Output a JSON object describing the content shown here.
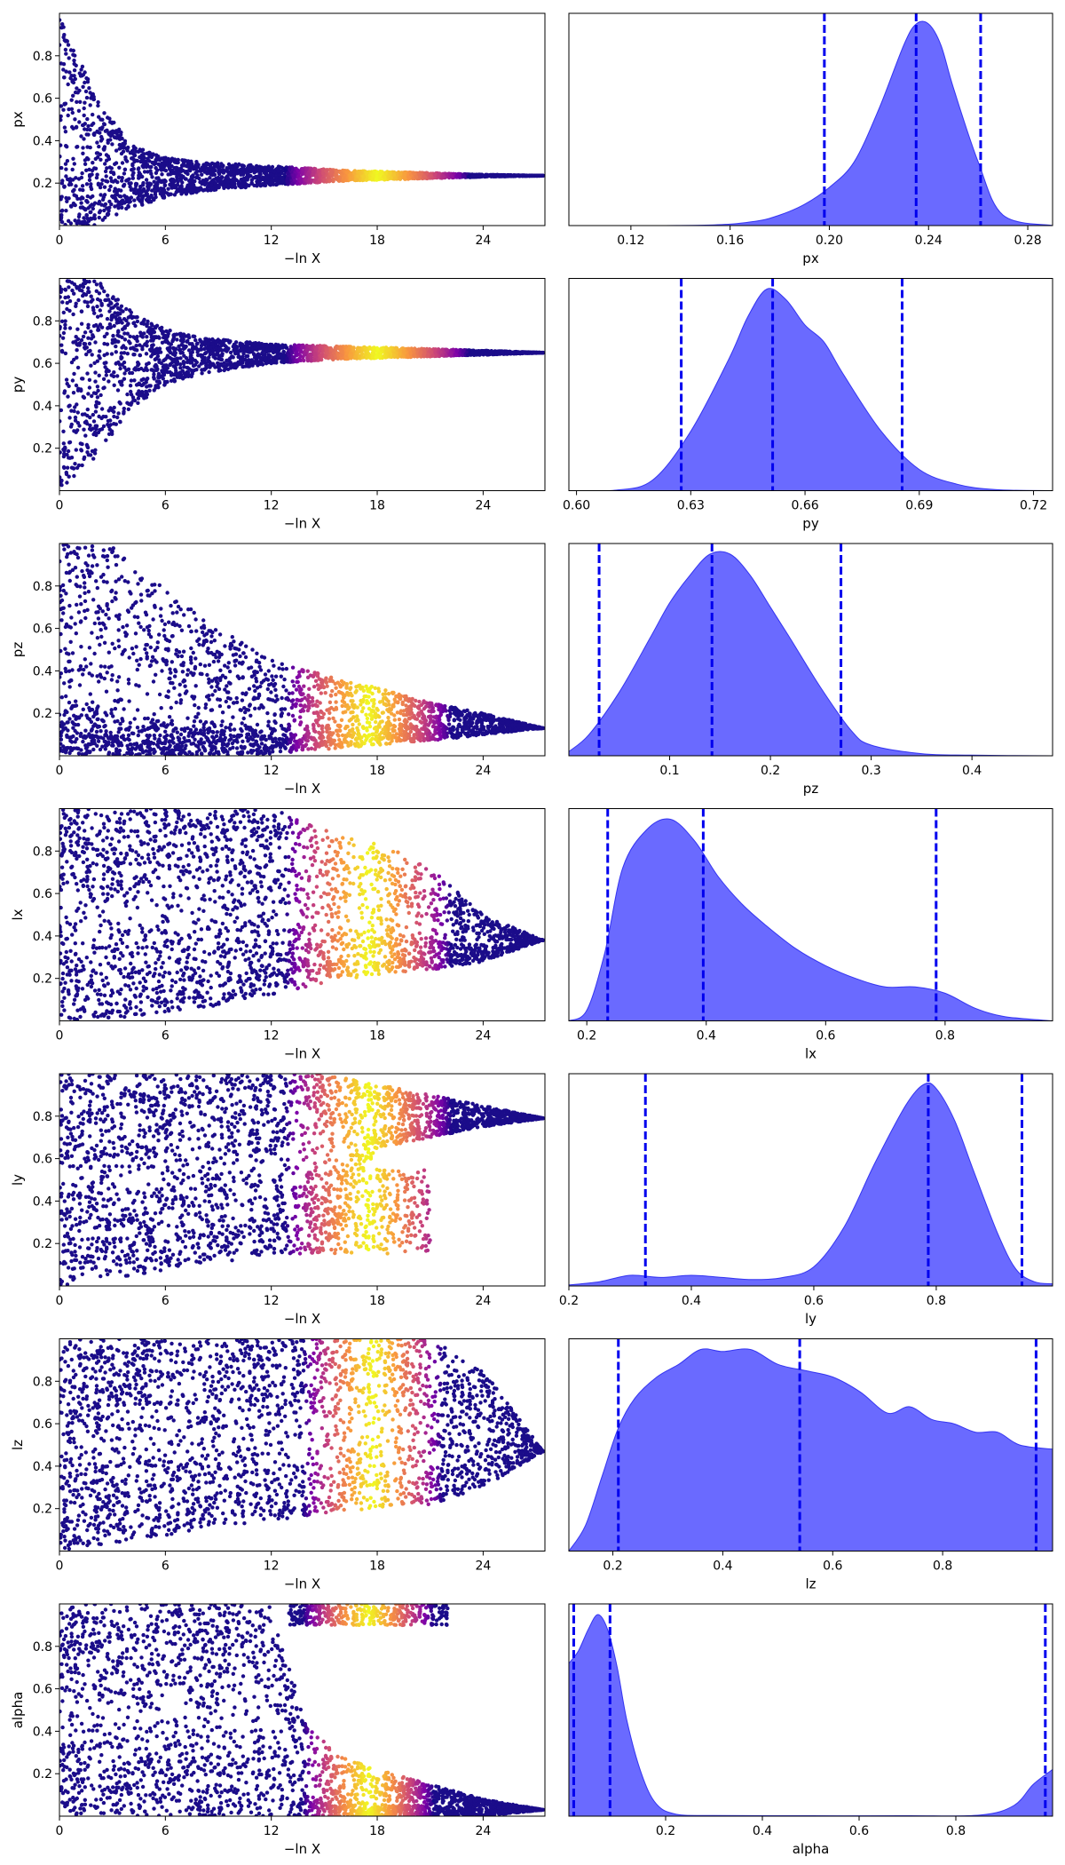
{
  "chart_data": [
    {
      "type": "scatter",
      "param": "px",
      "xlabel": "−ln X",
      "ylabel": "px",
      "xlim": [
        0,
        27.5
      ],
      "ylim": [
        0,
        1
      ],
      "grid": false,
      "xticks": [
        0,
        6,
        12,
        18,
        24
      ],
      "yticks": [
        0.2,
        0.4,
        0.6,
        0.8
      ],
      "envelope": {
        "x": [
          0,
          2,
          4,
          6,
          8,
          12,
          16,
          20,
          24,
          27.4
        ],
        "center": [
          0.35,
          0.28,
          0.25,
          0.24,
          0.235,
          0.235,
          0.235,
          0.235,
          0.235,
          0.235
        ],
        "lower": [
          0,
          0,
          0.08,
          0.13,
          0.16,
          0.19,
          0.21,
          0.22,
          0.23,
          0.235
        ],
        "upper": [
          1,
          0.62,
          0.38,
          0.32,
          0.3,
          0.28,
          0.26,
          0.25,
          0.24,
          0.235
        ]
      },
      "bright_x_range": [
        14,
        22
      ]
    },
    {
      "type": "area",
      "param": "px",
      "xlabel": "px",
      "xlim": [
        0.095,
        0.29
      ],
      "xticks": [
        0.12,
        0.16,
        0.2,
        0.24,
        0.28
      ],
      "x": [
        0.095,
        0.15,
        0.17,
        0.18,
        0.19,
        0.2,
        0.21,
        0.22,
        0.23,
        0.235,
        0.24,
        0.245,
        0.25,
        0.26,
        0.27,
        0.29
      ],
      "y": [
        0,
        0.002,
        0.02,
        0.05,
        0.1,
        0.18,
        0.3,
        0.55,
        0.85,
        0.95,
        0.95,
        0.85,
        0.65,
        0.3,
        0.05,
        0
      ],
      "vlines": [
        0.198,
        0.235,
        0.261
      ]
    },
    {
      "type": "scatter",
      "param": "py",
      "xlabel": "−ln X",
      "ylabel": "py",
      "xlim": [
        0,
        27.5
      ],
      "ylim": [
        0,
        1
      ],
      "grid": false,
      "xticks": [
        0,
        6,
        12,
        18,
        24
      ],
      "yticks": [
        0.2,
        0.4,
        0.6,
        0.8
      ],
      "envelope": {
        "x": [
          0,
          2,
          4,
          6,
          8,
          12,
          16,
          20,
          24,
          27.4
        ],
        "center": [
          0.6,
          0.62,
          0.63,
          0.64,
          0.645,
          0.65,
          0.65,
          0.65,
          0.65,
          0.65
        ],
        "lower": [
          0,
          0.15,
          0.38,
          0.5,
          0.55,
          0.6,
          0.62,
          0.63,
          0.64,
          0.65
        ],
        "upper": [
          1,
          1,
          0.85,
          0.76,
          0.72,
          0.69,
          0.68,
          0.67,
          0.66,
          0.65
        ]
      },
      "bright_x_range": [
        14,
        22
      ]
    },
    {
      "type": "area",
      "param": "py",
      "xlabel": "py",
      "xlim": [
        0.598,
        0.725
      ],
      "xticks": [
        0.6,
        0.63,
        0.66,
        0.69,
        0.72
      ],
      "x": [
        0.598,
        0.61,
        0.62,
        0.63,
        0.64,
        0.645,
        0.65,
        0.655,
        0.66,
        0.665,
        0.67,
        0.68,
        0.69,
        0.7,
        0.71,
        0.725
      ],
      "y": [
        0,
        0.002,
        0.05,
        0.28,
        0.62,
        0.82,
        0.95,
        0.9,
        0.78,
        0.7,
        0.55,
        0.28,
        0.1,
        0.03,
        0.005,
        0
      ],
      "vlines": [
        0.6275,
        0.6515,
        0.6855
      ]
    },
    {
      "type": "scatter",
      "param": "pz",
      "xlabel": "−ln X",
      "ylabel": "pz",
      "xlim": [
        0,
        27.5
      ],
      "ylim": [
        0,
        1
      ],
      "grid": false,
      "xticks": [
        0,
        6,
        12,
        18,
        24
      ],
      "yticks": [
        0.2,
        0.4,
        0.6,
        0.8
      ],
      "envelope": {
        "x": [
          0,
          3,
          6,
          9,
          12,
          15,
          18,
          21,
          24,
          27.4
        ],
        "center": [
          0.3,
          0.2,
          0.17,
          0.16,
          0.15,
          0.15,
          0.15,
          0.15,
          0.15,
          0.13
        ],
        "lower": [
          0,
          0,
          0,
          0,
          0.01,
          0.03,
          0.05,
          0.07,
          0.1,
          0.13
        ],
        "upper": [
          1,
          1,
          0.78,
          0.6,
          0.45,
          0.38,
          0.32,
          0.25,
          0.2,
          0.13
        ]
      },
      "bright_x_range": [
        14,
        21
      ]
    },
    {
      "type": "area",
      "param": "pz",
      "xlabel": "pz",
      "xlim": [
        0,
        0.48
      ],
      "xticks": [
        0.1,
        0.2,
        0.3,
        0.4
      ],
      "x": [
        0,
        0.02,
        0.05,
        0.08,
        0.1,
        0.12,
        0.14,
        0.16,
        0.18,
        0.2,
        0.22,
        0.25,
        0.28,
        0.3,
        0.35,
        0.4,
        0.48
      ],
      "y": [
        0.02,
        0.1,
        0.3,
        0.55,
        0.72,
        0.85,
        0.95,
        0.95,
        0.85,
        0.7,
        0.55,
        0.32,
        0.12,
        0.05,
        0.01,
        0.003,
        0
      ],
      "vlines": [
        0.03,
        0.142,
        0.27
      ]
    },
    {
      "type": "scatter",
      "param": "lx",
      "xlabel": "−ln X",
      "ylabel": "lx",
      "xlim": [
        0,
        27.5
      ],
      "ylim": [
        0,
        1
      ],
      "grid": false,
      "xticks": [
        0,
        6,
        12,
        18,
        24
      ],
      "yticks": [
        0.2,
        0.4,
        0.6,
        0.8
      ],
      "envelope": {
        "x": [
          0,
          4,
          8,
          12,
          15,
          18,
          21,
          24,
          27.4
        ],
        "center": [
          0.5,
          0.5,
          0.5,
          0.48,
          0.45,
          0.42,
          0.38,
          0.36,
          0.38
        ],
        "lower": [
          0,
          0.02,
          0.06,
          0.12,
          0.18,
          0.22,
          0.24,
          0.28,
          0.38
        ],
        "upper": [
          1,
          1,
          1,
          1,
          0.9,
          0.85,
          0.72,
          0.5,
          0.38
        ]
      },
      "bright_x_range": [
        14,
        21
      ]
    },
    {
      "type": "area",
      "param": "lx",
      "xlabel": "lx",
      "xlim": [
        0.17,
        0.98
      ],
      "xticks": [
        0.2,
        0.4,
        0.6,
        0.8
      ],
      "x": [
        0.17,
        0.2,
        0.23,
        0.26,
        0.3,
        0.34,
        0.38,
        0.42,
        0.46,
        0.5,
        0.55,
        0.6,
        0.65,
        0.7,
        0.75,
        0.8,
        0.85,
        0.9,
        0.98
      ],
      "y": [
        0,
        0.05,
        0.32,
        0.72,
        0.9,
        0.95,
        0.85,
        0.68,
        0.55,
        0.45,
        0.34,
        0.26,
        0.2,
        0.16,
        0.16,
        0.13,
        0.06,
        0.02,
        0
      ],
      "vlines": [
        0.235,
        0.395,
        0.785
      ]
    },
    {
      "type": "scatter",
      "param": "ly",
      "xlabel": "−ln X",
      "ylabel": "ly",
      "xlim": [
        0,
        27.5
      ],
      "ylim": [
        0,
        1
      ],
      "grid": false,
      "xticks": [
        0,
        6,
        12,
        18,
        24
      ],
      "yticks": [
        0.2,
        0.4,
        0.6,
        0.8
      ],
      "envelope": {
        "x": [
          0,
          4,
          8,
          12,
          15,
          18,
          21,
          24,
          27.4
        ],
        "center": [
          0.5,
          0.5,
          0.55,
          0.6,
          0.7,
          0.76,
          0.78,
          0.79,
          0.79
        ],
        "lower": [
          0,
          0.05,
          0.1,
          0.14,
          0.16,
          0.65,
          0.7,
          0.75,
          0.79
        ],
        "upper": [
          1,
          1,
          1,
          1,
          1,
          0.95,
          0.9,
          0.85,
          0.79
        ]
      },
      "lower_cluster": {
        "x_range": [
          14,
          21
        ],
        "y_range": [
          0.15,
          0.55
        ]
      },
      "bright_x_range": [
        14,
        21
      ]
    },
    {
      "type": "area",
      "param": "ly",
      "xlabel": "ly",
      "xlim": [
        0.2,
        0.99
      ],
      "xticks": [
        0.2,
        0.4,
        0.6,
        0.8
      ],
      "x": [
        0.2,
        0.25,
        0.3,
        0.35,
        0.4,
        0.45,
        0.5,
        0.55,
        0.6,
        0.65,
        0.7,
        0.75,
        0.78,
        0.8,
        0.83,
        0.86,
        0.9,
        0.93,
        0.96,
        0.99
      ],
      "y": [
        0.005,
        0.02,
        0.05,
        0.04,
        0.05,
        0.04,
        0.03,
        0.04,
        0.09,
        0.28,
        0.58,
        0.85,
        0.95,
        0.93,
        0.78,
        0.55,
        0.25,
        0.08,
        0.02,
        0.01
      ],
      "vlines": [
        0.325,
        0.787,
        0.94
      ]
    },
    {
      "type": "scatter",
      "param": "lz",
      "xlabel": "−ln X",
      "ylabel": "lz",
      "xlim": [
        0,
        27.5
      ],
      "ylim": [
        0,
        1
      ],
      "grid": false,
      "xticks": [
        0,
        6,
        12,
        18,
        24
      ],
      "yticks": [
        0.2,
        0.4,
        0.6,
        0.8
      ],
      "envelope": {
        "x": [
          0,
          4,
          8,
          12,
          15,
          18,
          21,
          24,
          27.4
        ],
        "center": [
          0.5,
          0.52,
          0.55,
          0.58,
          0.6,
          0.6,
          0.6,
          0.55,
          0.47
        ],
        "lower": [
          0,
          0.05,
          0.1,
          0.14,
          0.18,
          0.2,
          0.22,
          0.3,
          0.47
        ],
        "upper": [
          1,
          1,
          1,
          1,
          1,
          1,
          1,
          0.85,
          0.47
        ]
      },
      "bright_x_range": [
        15,
        20.5
      ]
    },
    {
      "type": "area",
      "param": "lz",
      "xlabel": "lz",
      "xlim": [
        0.12,
        1.0
      ],
      "xticks": [
        0.2,
        0.4,
        0.6,
        0.8
      ],
      "x": [
        0.12,
        0.15,
        0.18,
        0.21,
        0.24,
        0.28,
        0.32,
        0.36,
        0.4,
        0.45,
        0.5,
        0.55,
        0.6,
        0.65,
        0.7,
        0.74,
        0.78,
        0.82,
        0.86,
        0.9,
        0.94,
        1.0
      ],
      "y": [
        0,
        0.12,
        0.35,
        0.58,
        0.72,
        0.82,
        0.88,
        0.95,
        0.94,
        0.95,
        0.88,
        0.85,
        0.82,
        0.75,
        0.65,
        0.68,
        0.62,
        0.6,
        0.56,
        0.56,
        0.5,
        0.48
      ],
      "vlines": [
        0.21,
        0.54,
        0.97
      ]
    },
    {
      "type": "scatter",
      "param": "alpha",
      "xlabel": "−ln X",
      "ylabel": "alpha",
      "xlim": [
        0,
        27.5
      ],
      "ylim": [
        0,
        1
      ],
      "grid": false,
      "xticks": [
        0,
        6,
        12,
        18,
        24
      ],
      "yticks": [
        0.2,
        0.4,
        0.6,
        0.8
      ],
      "envelope": {
        "x": [
          0,
          6,
          12,
          14,
          16,
          18,
          21,
          24,
          27.4
        ],
        "center": [
          0.5,
          0.5,
          0.5,
          0.1,
          0.08,
          0.06,
          0.05,
          0.04,
          0.03
        ],
        "lower": [
          0,
          0,
          0,
          0,
          0,
          0,
          0,
          0,
          0.03
        ],
        "upper": [
          1,
          1,
          1,
          0.42,
          0.28,
          0.22,
          0.15,
          0.08,
          0.03
        ]
      },
      "top_cluster": {
        "x_range": [
          13,
          22
        ],
        "y_range": [
          0.9,
          1.0
        ]
      },
      "bright_x_range": [
        15,
        20
      ]
    },
    {
      "type": "area",
      "param": "alpha",
      "xlabel": "alpha",
      "xlim": [
        0,
        1.0
      ],
      "xticks": [
        0.2,
        0.4,
        0.6,
        0.8
      ],
      "x": [
        0,
        0.02,
        0.04,
        0.06,
        0.08,
        0.1,
        0.12,
        0.15,
        0.18,
        0.22,
        0.3,
        0.5,
        0.7,
        0.85,
        0.92,
        0.96,
        1.0
      ],
      "y": [
        0.72,
        0.78,
        0.88,
        0.95,
        0.88,
        0.7,
        0.45,
        0.2,
        0.06,
        0.01,
        0.003,
        0.002,
        0.002,
        0.005,
        0.05,
        0.15,
        0.22
      ],
      "vlines": [
        0.01,
        0.085,
        0.985
      ]
    }
  ]
}
